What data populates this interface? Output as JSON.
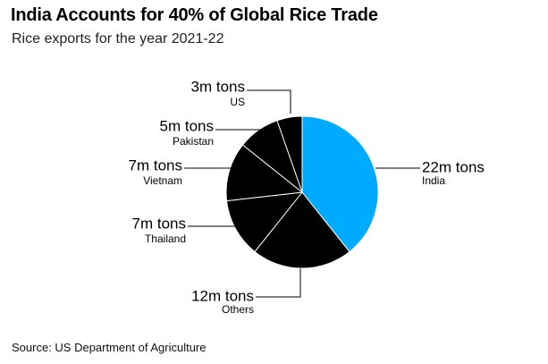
{
  "header": {
    "title": "India Accounts for 40% of Global Rice Trade",
    "subtitle": "Rice exports for the year 2021-22"
  },
  "footer": {
    "source": "Source: US Department of Agriculture"
  },
  "colors": {
    "india": "#00aaff",
    "others": "#000000",
    "slice_border": "#ffffff"
  },
  "chart_data": {
    "type": "pie",
    "title": "India Accounts for 40% of Global Rice Trade",
    "subtitle": "Rice exports for the year 2021-22",
    "slices": [
      {
        "name": "India",
        "value": 22,
        "value_label": "22m tons",
        "color": "#00aaff"
      },
      {
        "name": "Others",
        "value": 12,
        "value_label": "12m tons",
        "color": "#000000"
      },
      {
        "name": "Thailand",
        "value": 7,
        "value_label": "7m tons",
        "color": "#000000"
      },
      {
        "name": "Vietnam",
        "value": 7,
        "value_label": "7m tons",
        "color": "#000000"
      },
      {
        "name": "Pakistan",
        "value": 5,
        "value_label": "5m tons",
        "color": "#000000"
      },
      {
        "name": "US",
        "value": 3,
        "value_label": "3m tons",
        "color": "#000000"
      }
    ],
    "start_angle": "top",
    "direction": "clockwise",
    "legend": "none"
  }
}
